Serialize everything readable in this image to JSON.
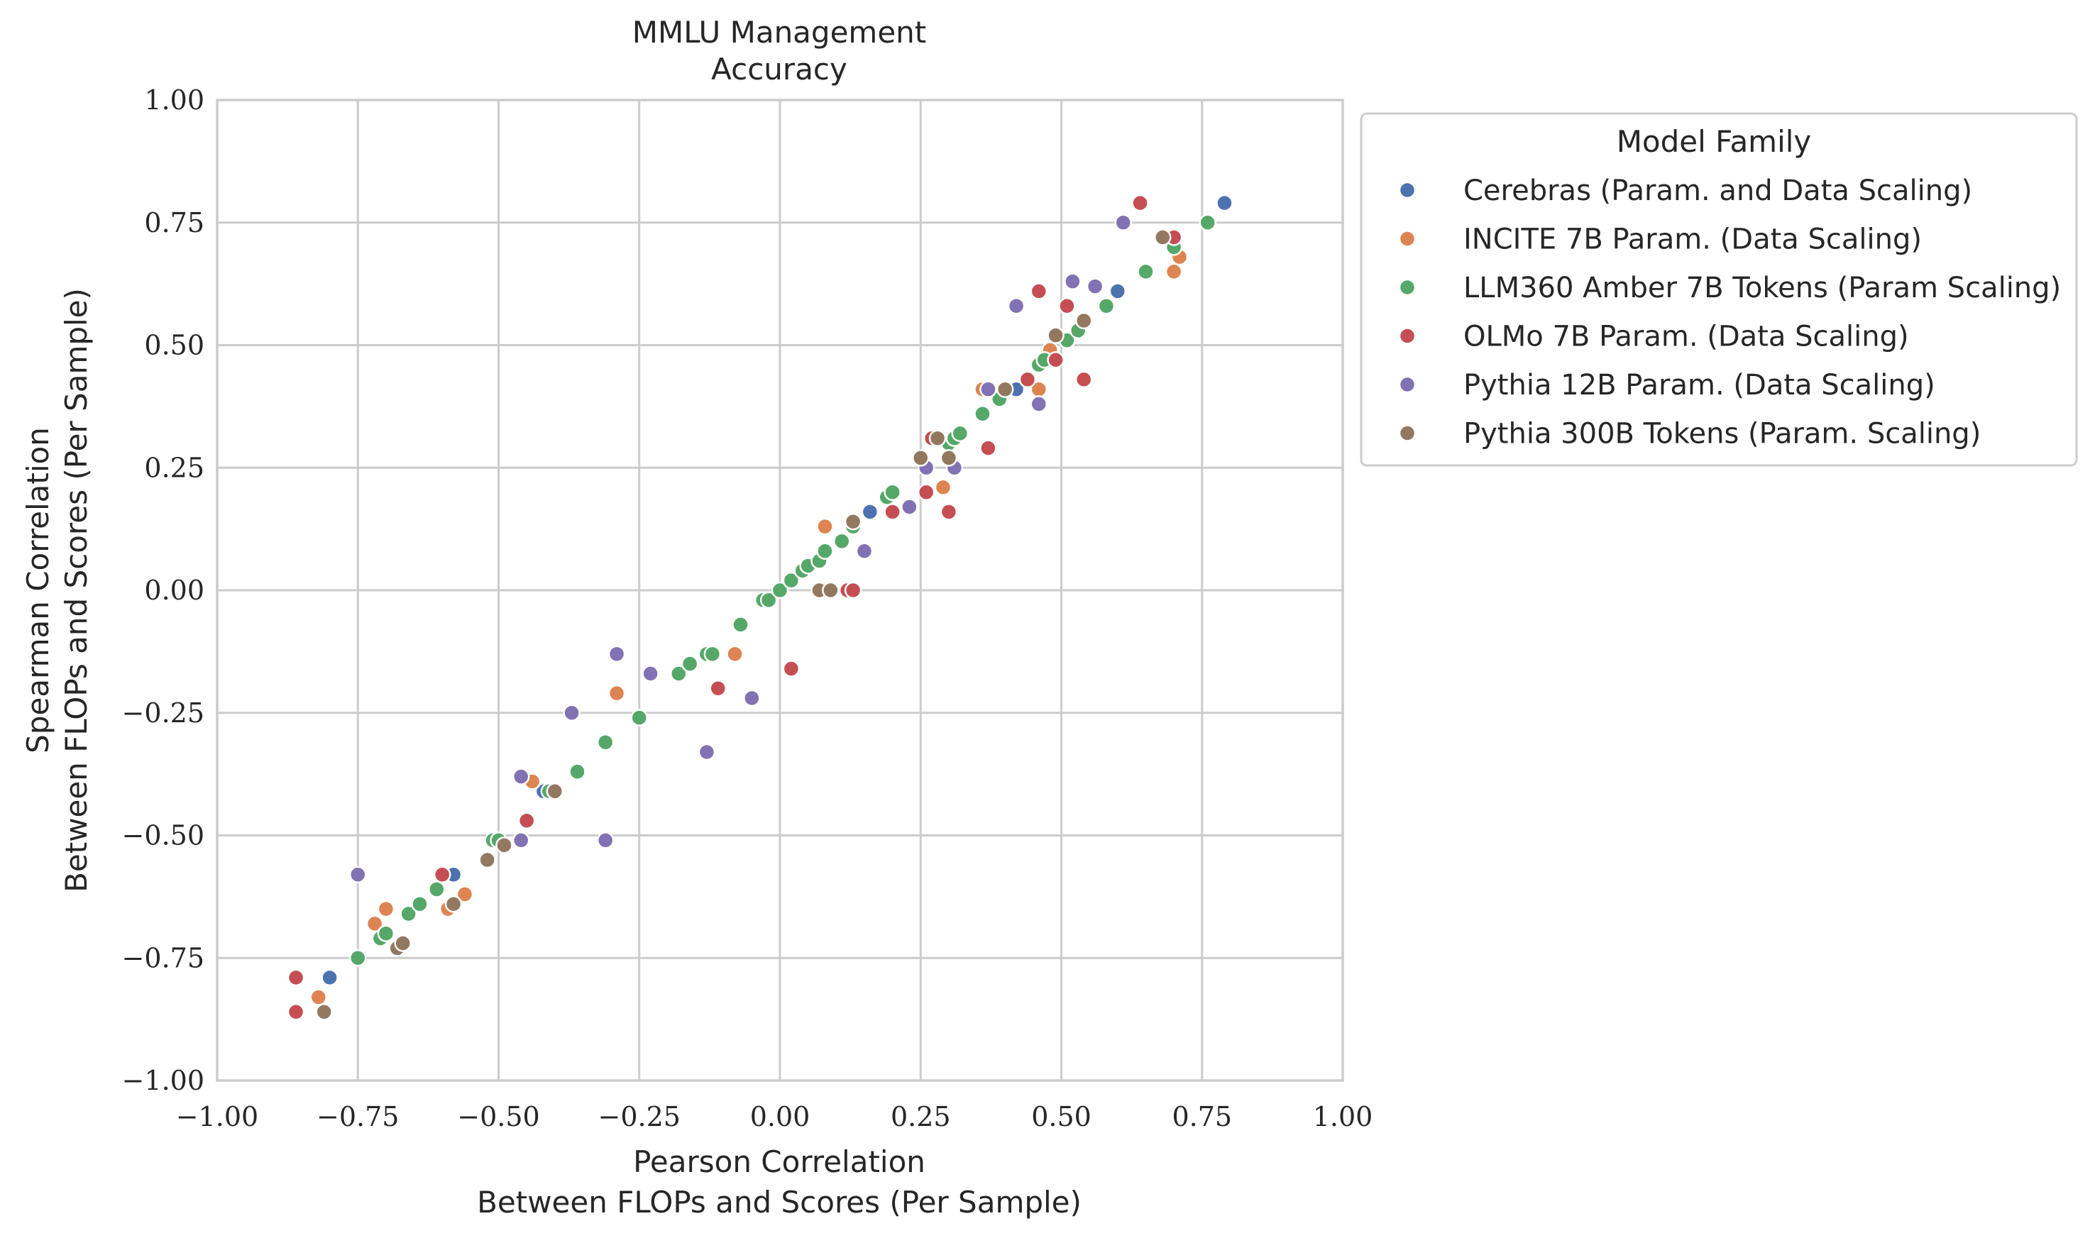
{
  "chart_data": {
    "type": "scatter",
    "title": "MMLU Management\nAccuracy",
    "xlabel": "Pearson Correlation\nBetween FLOPs and Scores (Per Sample)",
    "ylabel": "Spearman Correlation\nBetween FLOPs and Scores (Per Sample)",
    "xlim": [
      -1.0,
      1.0
    ],
    "ylim": [
      -1.0,
      1.0
    ],
    "xticks": [
      -1.0,
      -0.75,
      -0.5,
      -0.25,
      0.0,
      0.25,
      0.5,
      0.75,
      1.0
    ],
    "yticks": [
      -1.0,
      -0.75,
      -0.5,
      -0.25,
      0.0,
      0.25,
      0.5,
      0.75,
      1.0
    ],
    "xtick_labels": [
      "−1.00",
      "−0.75",
      "−0.50",
      "−0.25",
      "0.00",
      "0.25",
      "0.50",
      "0.75",
      "1.00"
    ],
    "ytick_labels": [
      "−1.00",
      "−0.75",
      "−0.50",
      "−0.25",
      "0.00",
      "0.25",
      "0.50",
      "0.75",
      "1.00"
    ],
    "grid": true,
    "legend": {
      "title": "Model Family",
      "placement": "outside-right-top"
    },
    "series": [
      {
        "name": "Cerebras (Param. and Data Scaling)",
        "color": "#4c72b0",
        "points": [
          [
            -0.8,
            -0.79
          ],
          [
            -0.58,
            -0.58
          ],
          [
            -0.42,
            -0.41
          ],
          [
            0.16,
            0.16
          ],
          [
            0.42,
            0.41
          ],
          [
            0.6,
            0.61
          ],
          [
            0.79,
            0.79
          ]
        ]
      },
      {
        "name": "INCITE 7B Param. (Data Scaling)",
        "color": "#dd8452",
        "points": [
          [
            -0.82,
            -0.83
          ],
          [
            -0.72,
            -0.68
          ],
          [
            -0.7,
            -0.65
          ],
          [
            -0.59,
            -0.65
          ],
          [
            -0.56,
            -0.62
          ],
          [
            -0.44,
            -0.39
          ],
          [
            -0.29,
            -0.21
          ],
          [
            -0.08,
            -0.13
          ],
          [
            0.08,
            0.13
          ],
          [
            0.29,
            0.21
          ],
          [
            0.36,
            0.41
          ],
          [
            0.46,
            0.41
          ],
          [
            0.48,
            0.49
          ],
          [
            0.7,
            0.65
          ],
          [
            0.71,
            0.68
          ]
        ]
      },
      {
        "name": "LLM360 Amber 7B Tokens (Param Scaling)",
        "color": "#55a868",
        "points": [
          [
            -0.75,
            -0.75
          ],
          [
            -0.71,
            -0.71
          ],
          [
            -0.7,
            -0.7
          ],
          [
            -0.66,
            -0.66
          ],
          [
            -0.64,
            -0.64
          ],
          [
            -0.61,
            -0.61
          ],
          [
            -0.51,
            -0.51
          ],
          [
            -0.5,
            -0.51
          ],
          [
            -0.41,
            -0.41
          ],
          [
            -0.36,
            -0.37
          ],
          [
            -0.31,
            -0.31
          ],
          [
            -0.25,
            -0.26
          ],
          [
            -0.18,
            -0.17
          ],
          [
            -0.16,
            -0.15
          ],
          [
            -0.13,
            -0.13
          ],
          [
            -0.12,
            -0.13
          ],
          [
            -0.07,
            -0.07
          ],
          [
            -0.03,
            -0.02
          ],
          [
            -0.02,
            -0.02
          ],
          [
            0.0,
            0.0
          ],
          [
            0.02,
            0.02
          ],
          [
            0.04,
            0.04
          ],
          [
            0.05,
            0.05
          ],
          [
            0.07,
            0.06
          ],
          [
            0.08,
            0.08
          ],
          [
            0.11,
            0.1
          ],
          [
            0.13,
            0.13
          ],
          [
            0.19,
            0.19
          ],
          [
            0.2,
            0.2
          ],
          [
            0.3,
            0.3
          ],
          [
            0.31,
            0.31
          ],
          [
            0.32,
            0.32
          ],
          [
            0.36,
            0.36
          ],
          [
            0.39,
            0.39
          ],
          [
            0.46,
            0.46
          ],
          [
            0.47,
            0.47
          ],
          [
            0.51,
            0.51
          ],
          [
            0.53,
            0.53
          ],
          [
            0.58,
            0.58
          ],
          [
            0.65,
            0.65
          ],
          [
            0.7,
            0.7
          ],
          [
            0.76,
            0.75
          ]
        ]
      },
      {
        "name": "OLMo 7B Param. (Data Scaling)",
        "color": "#c44e52",
        "points": [
          [
            -0.86,
            -0.79
          ],
          [
            -0.86,
            -0.86
          ],
          [
            -0.6,
            -0.58
          ],
          [
            -0.45,
            -0.47
          ],
          [
            -0.11,
            -0.2
          ],
          [
            0.02,
            -0.16
          ],
          [
            0.12,
            0.0
          ],
          [
            0.13,
            0.0
          ],
          [
            0.2,
            0.16
          ],
          [
            0.26,
            0.2
          ],
          [
            0.27,
            0.31
          ],
          [
            0.3,
            0.16
          ],
          [
            0.37,
            0.29
          ],
          [
            0.44,
            0.43
          ],
          [
            0.46,
            0.61
          ],
          [
            0.49,
            0.47
          ],
          [
            0.51,
            0.58
          ],
          [
            0.54,
            0.43
          ],
          [
            0.64,
            0.79
          ],
          [
            0.7,
            0.72
          ]
        ]
      },
      {
        "name": "Pythia 12B Param. (Data Scaling)",
        "color": "#8172b3",
        "points": [
          [
            -0.75,
            -0.58
          ],
          [
            -0.46,
            -0.38
          ],
          [
            -0.46,
            -0.51
          ],
          [
            -0.37,
            -0.25
          ],
          [
            -0.31,
            -0.51
          ],
          [
            -0.29,
            -0.13
          ],
          [
            -0.23,
            -0.17
          ],
          [
            -0.13,
            -0.33
          ],
          [
            -0.05,
            -0.22
          ],
          [
            0.15,
            0.08
          ],
          [
            0.23,
            0.17
          ],
          [
            0.26,
            0.25
          ],
          [
            0.31,
            0.25
          ],
          [
            0.37,
            0.41
          ],
          [
            0.42,
            0.58
          ],
          [
            0.46,
            0.38
          ],
          [
            0.52,
            0.63
          ],
          [
            0.56,
            0.62
          ],
          [
            0.61,
            0.75
          ]
        ]
      },
      {
        "name": "Pythia 300B Tokens (Param. Scaling)",
        "color": "#937860",
        "points": [
          [
            -0.81,
            -0.86
          ],
          [
            -0.68,
            -0.73
          ],
          [
            -0.67,
            -0.72
          ],
          [
            -0.58,
            -0.64
          ],
          [
            -0.52,
            -0.55
          ],
          [
            -0.49,
            -0.52
          ],
          [
            -0.4,
            -0.41
          ],
          [
            0.07,
            0.0
          ],
          [
            0.09,
            0.0
          ],
          [
            0.13,
            0.14
          ],
          [
            0.25,
            0.27
          ],
          [
            0.28,
            0.31
          ],
          [
            0.3,
            0.27
          ],
          [
            0.4,
            0.41
          ],
          [
            0.49,
            0.52
          ],
          [
            0.54,
            0.55
          ],
          [
            0.68,
            0.72
          ]
        ]
      }
    ]
  }
}
